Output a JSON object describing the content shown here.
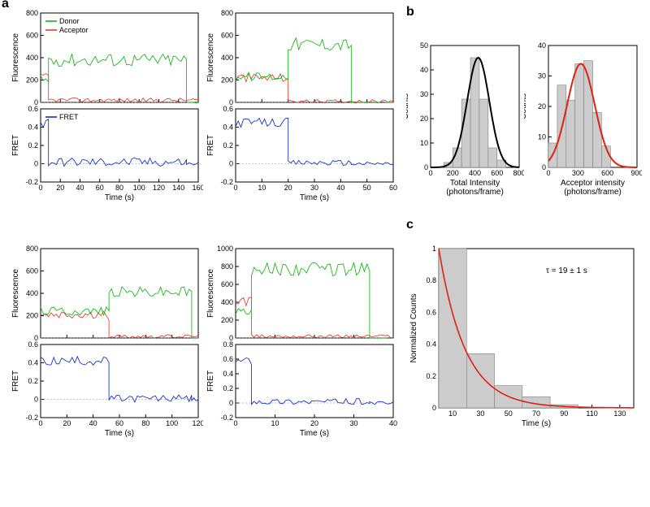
{
  "labels": {
    "a": "a",
    "b": "b",
    "c": "c",
    "donor": "Donor",
    "acceptor": "Acceptor",
    "fret": "FRET",
    "fluorescence": "Fluorescence",
    "fret_y": "FRET",
    "time": "Time (s)",
    "counts": "Counts",
    "normcounts": "Normalized Counts",
    "total_intensity": "Total Intensity\n(photons/frame)",
    "acceptor_intensity": "Acceptor intensity\n(photons/frame)",
    "tau": "τ = 19 ± 1 s"
  },
  "colors": {
    "donor": "#00b400",
    "acceptor": "#e03020",
    "fret": "#0020c0",
    "hist_fill": "#cccccc",
    "hist_stroke": "#808080",
    "gauss_total": "#000000",
    "gauss_acc": "#e02010",
    "decay_line": "#e02010",
    "grid": "#888888",
    "axis": "#000000"
  },
  "traces": [
    {
      "xmax": 160,
      "xticks": [
        0,
        20,
        40,
        60,
        80,
        100,
        120,
        140,
        160
      ],
      "fl_ymax": 800,
      "fl_yticks": [
        0,
        200,
        400,
        600,
        800
      ],
      "fret_ymin": -0.2,
      "fret_ymax": 0.6,
      "fret_yticks": [
        -0.2,
        0,
        0.2,
        0.4,
        0.6
      ],
      "legend_pos": "tl",
      "donor_seg": [
        {
          "t0": 0,
          "t1": 8,
          "v": 200,
          "noise": 40
        },
        {
          "t0": 8,
          "t1": 148,
          "v": 380,
          "noise": 60
        },
        {
          "t0": 148,
          "t1": 160,
          "v": 0,
          "noise": 5
        }
      ],
      "acceptor_seg": [
        {
          "t0": 0,
          "t1": 8,
          "v": 220,
          "noise": 40
        },
        {
          "t0": 8,
          "t1": 160,
          "v": 20,
          "noise": 20
        }
      ],
      "fret_seg": [
        {
          "t0": 0,
          "t1": 8,
          "v": 0.45,
          "noise": 0.08
        },
        {
          "t0": 8,
          "t1": 148,
          "v": 0.02,
          "noise": 0.05
        },
        {
          "t0": 148,
          "t1": 160,
          "v": 0,
          "noise": 0.02
        }
      ]
    },
    {
      "xmax": 60,
      "xticks": [
        0,
        10,
        20,
        30,
        40,
        50,
        60
      ],
      "fl_ymax": 800,
      "fl_yticks": [
        0,
        200,
        400,
        600,
        800
      ],
      "fret_ymin": -0.2,
      "fret_ymax": 0.6,
      "fret_yticks": [
        -0.2,
        0,
        0.2,
        0.4,
        0.6
      ],
      "legend_pos": "none",
      "donor_seg": [
        {
          "t0": 0,
          "t1": 20,
          "v": 230,
          "noise": 40
        },
        {
          "t0": 20,
          "t1": 44,
          "v": 520,
          "noise": 60
        },
        {
          "t0": 44,
          "t1": 60,
          "v": 0,
          "noise": 5
        }
      ],
      "acceptor_seg": [
        {
          "t0": 0,
          "t1": 20,
          "v": 220,
          "noise": 40
        },
        {
          "t0": 20,
          "t1": 60,
          "v": 10,
          "noise": 15
        }
      ],
      "fret_seg": [
        {
          "t0": 0,
          "t1": 20,
          "v": 0.45,
          "noise": 0.05
        },
        {
          "t0": 20,
          "t1": 44,
          "v": 0.01,
          "noise": 0.03
        },
        {
          "t0": 44,
          "t1": 60,
          "v": 0,
          "noise": 0.02
        }
      ]
    },
    {
      "xmax": 120,
      "xticks": [
        0,
        20,
        40,
        60,
        80,
        100,
        120
      ],
      "fl_ymax": 800,
      "fl_yticks": [
        0,
        200,
        400,
        600,
        800
      ],
      "fret_ymin": -0.2,
      "fret_ymax": 0.6,
      "fret_yticks": [
        -0.2,
        0,
        0.2,
        0.4,
        0.6
      ],
      "legend_pos": "none",
      "donor_seg": [
        {
          "t0": 0,
          "t1": 52,
          "v": 240,
          "noise": 40
        },
        {
          "t0": 52,
          "t1": 115,
          "v": 410,
          "noise": 50
        },
        {
          "t0": 115,
          "t1": 120,
          "v": 0,
          "noise": 5
        }
      ],
      "acceptor_seg": [
        {
          "t0": 0,
          "t1": 52,
          "v": 200,
          "noise": 40
        },
        {
          "t0": 52,
          "t1": 120,
          "v": 15,
          "noise": 15
        }
      ],
      "fret_seg": [
        {
          "t0": 0,
          "t1": 52,
          "v": 0.42,
          "noise": 0.05
        },
        {
          "t0": 52,
          "t1": 115,
          "v": 0.01,
          "noise": 0.04
        },
        {
          "t0": 115,
          "t1": 120,
          "v": 0,
          "noise": 0.02
        }
      ]
    },
    {
      "xmax": 40,
      "xticks": [
        0,
        10,
        20,
        30,
        40
      ],
      "fl_ymax": 1000,
      "fl_yticks": [
        0,
        200,
        400,
        600,
        800,
        1000
      ],
      "fret_ymin": -0.2,
      "fret_ymax": 0.8,
      "fret_yticks": [
        -0.2,
        0,
        0.2,
        0.4,
        0.6,
        0.8
      ],
      "legend_pos": "none",
      "donor_seg": [
        {
          "t0": 0,
          "t1": 4,
          "v": 300,
          "noise": 60
        },
        {
          "t0": 4,
          "t1": 34,
          "v": 770,
          "noise": 80
        },
        {
          "t0": 34,
          "t1": 40,
          "v": 0,
          "noise": 5
        }
      ],
      "acceptor_seg": [
        {
          "t0": 0,
          "t1": 4,
          "v": 400,
          "noise": 60
        },
        {
          "t0": 4,
          "t1": 40,
          "v": 20,
          "noise": 20
        }
      ],
      "fret_seg": [
        {
          "t0": 0,
          "t1": 4,
          "v": 0.58,
          "noise": 0.06
        },
        {
          "t0": 4,
          "t1": 34,
          "v": 0.02,
          "noise": 0.04
        },
        {
          "t0": 34,
          "t1": 40,
          "v": 0,
          "noise": 0.02
        }
      ]
    }
  ],
  "hist_total": {
    "xmax": 800,
    "xticks": [
      0,
      200,
      400,
      600,
      800
    ],
    "ymax": 50,
    "yticks": [
      0,
      10,
      20,
      30,
      40,
      50
    ],
    "bin_w": 80,
    "bars": [
      {
        "x": 160,
        "c": 2
      },
      {
        "x": 240,
        "c": 8
      },
      {
        "x": 320,
        "c": 28
      },
      {
        "x": 400,
        "c": 45
      },
      {
        "x": 480,
        "c": 28
      },
      {
        "x": 560,
        "c": 8
      },
      {
        "x": 640,
        "c": 3
      }
    ],
    "gauss": {
      "mu": 430,
      "sigma": 100,
      "amp": 45
    }
  },
  "hist_acc": {
    "xmax": 900,
    "xticks": [
      0,
      300,
      600,
      900
    ],
    "ymax": 40,
    "yticks": [
      0,
      10,
      20,
      30,
      40
    ],
    "bin_w": 90,
    "bars": [
      {
        "x": 45,
        "c": 8
      },
      {
        "x": 135,
        "c": 27
      },
      {
        "x": 225,
        "c": 22
      },
      {
        "x": 315,
        "c": 34
      },
      {
        "x": 405,
        "c": 35
      },
      {
        "x": 495,
        "c": 18
      },
      {
        "x": 585,
        "c": 7
      }
    ],
    "gauss": {
      "mu": 330,
      "sigma": 140,
      "amp": 34
    }
  },
  "decay": {
    "xmax": 140,
    "xticks": [
      10,
      30,
      50,
      70,
      90,
      110,
      130
    ],
    "ymax": 1.0,
    "yticks": [
      0,
      0.2,
      0.4,
      0.6,
      0.8,
      1.0
    ],
    "bin_w": 20,
    "bars": [
      {
        "x": 10,
        "c": 1.0
      },
      {
        "x": 30,
        "c": 0.34
      },
      {
        "x": 50,
        "c": 0.14
      },
      {
        "x": 70,
        "c": 0.07
      },
      {
        "x": 90,
        "c": 0.02
      }
    ],
    "tau": 19
  }
}
